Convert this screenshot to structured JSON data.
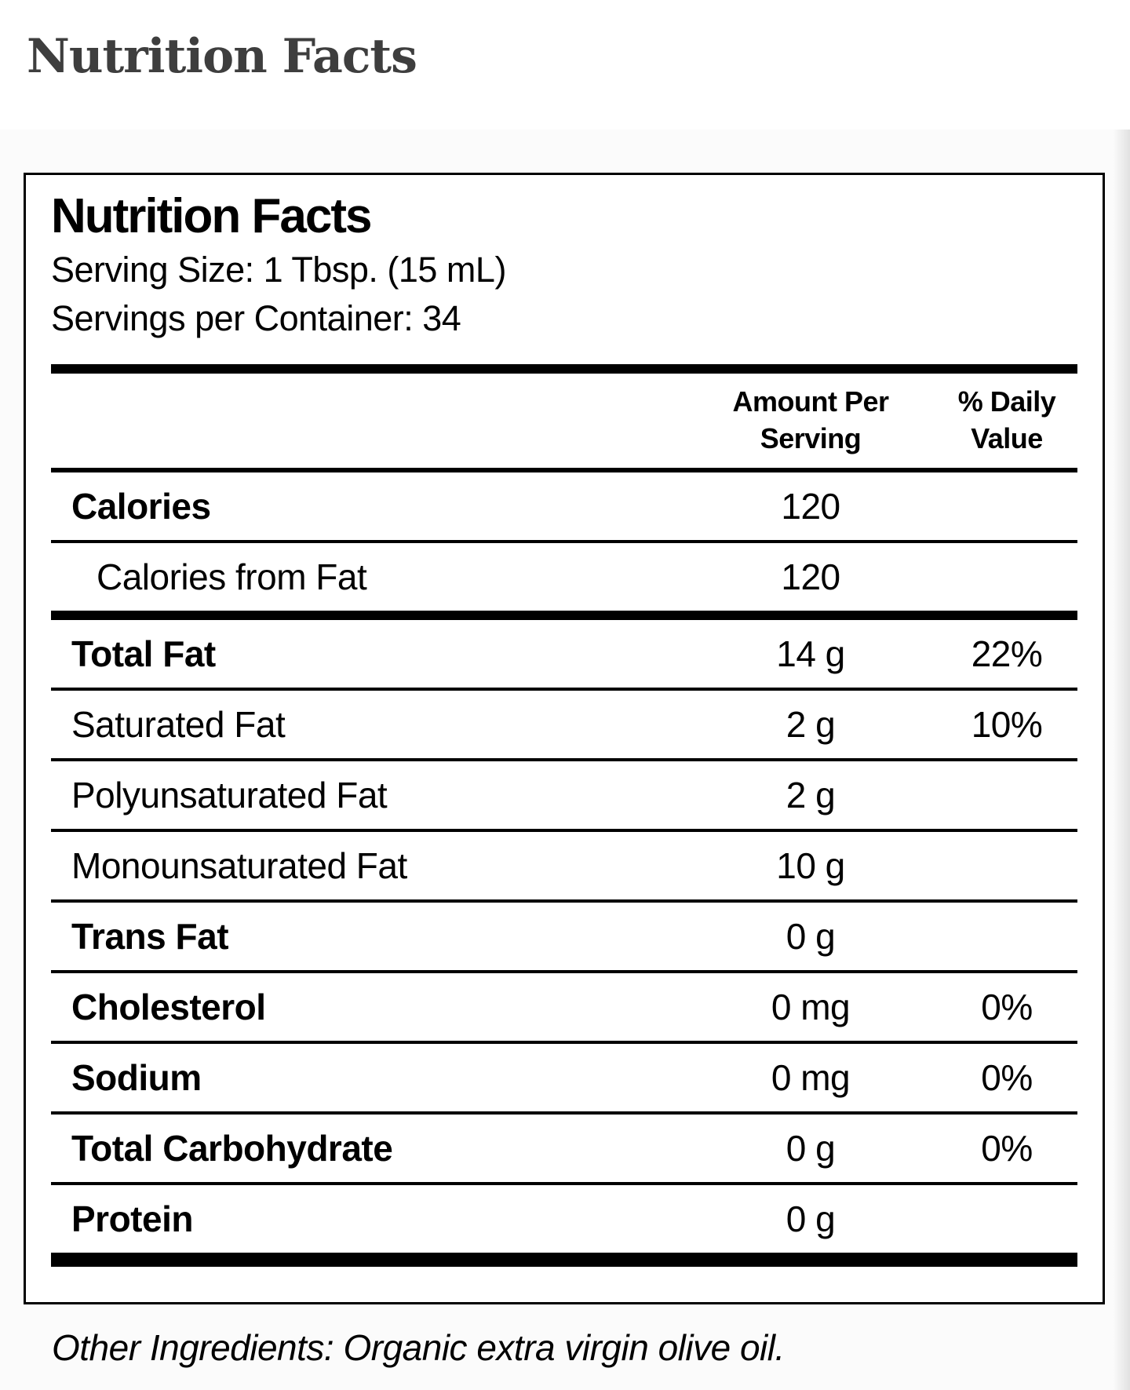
{
  "page": {
    "title": "Nutrition Facts"
  },
  "label": {
    "title": "Nutrition Facts",
    "serving_size": "Serving Size: 1 Tbsp. (15 mL)",
    "servings_per_container": "Servings per Container: 34",
    "header": {
      "amount": "Amount Per\nServing",
      "daily_value": "% Daily\nValue"
    },
    "rows": [
      {
        "label": "Calories",
        "amount": "120",
        "dv": ""
      },
      {
        "label": "Calories from Fat",
        "amount": "120",
        "dv": ""
      },
      {
        "label": "Total Fat",
        "amount": "14 g",
        "dv": "22%"
      },
      {
        "label": "Saturated Fat",
        "amount": "2 g",
        "dv": "10%"
      },
      {
        "label": "Polyunsaturated Fat",
        "amount": "2 g",
        "dv": ""
      },
      {
        "label": "Monounsaturated Fat",
        "amount": "10 g",
        "dv": ""
      },
      {
        "label": "Trans Fat",
        "amount": "0 g",
        "dv": ""
      },
      {
        "label": "Cholesterol",
        "amount": "0 mg",
        "dv": "0%"
      },
      {
        "label": "Sodium",
        "amount": "0 mg",
        "dv": "0%"
      },
      {
        "label": "Total Carbohydrate",
        "amount": "0 g",
        "dv": "0%"
      },
      {
        "label": "Protein",
        "amount": "0 g",
        "dv": ""
      }
    ],
    "footnote": "Other Ingredients: Organic extra virgin olive oil."
  },
  "colors": {
    "page_title": "#3e3e3e",
    "label_text": "#000000",
    "rule": "#000000",
    "panel_background": "#fbfbfb"
  }
}
